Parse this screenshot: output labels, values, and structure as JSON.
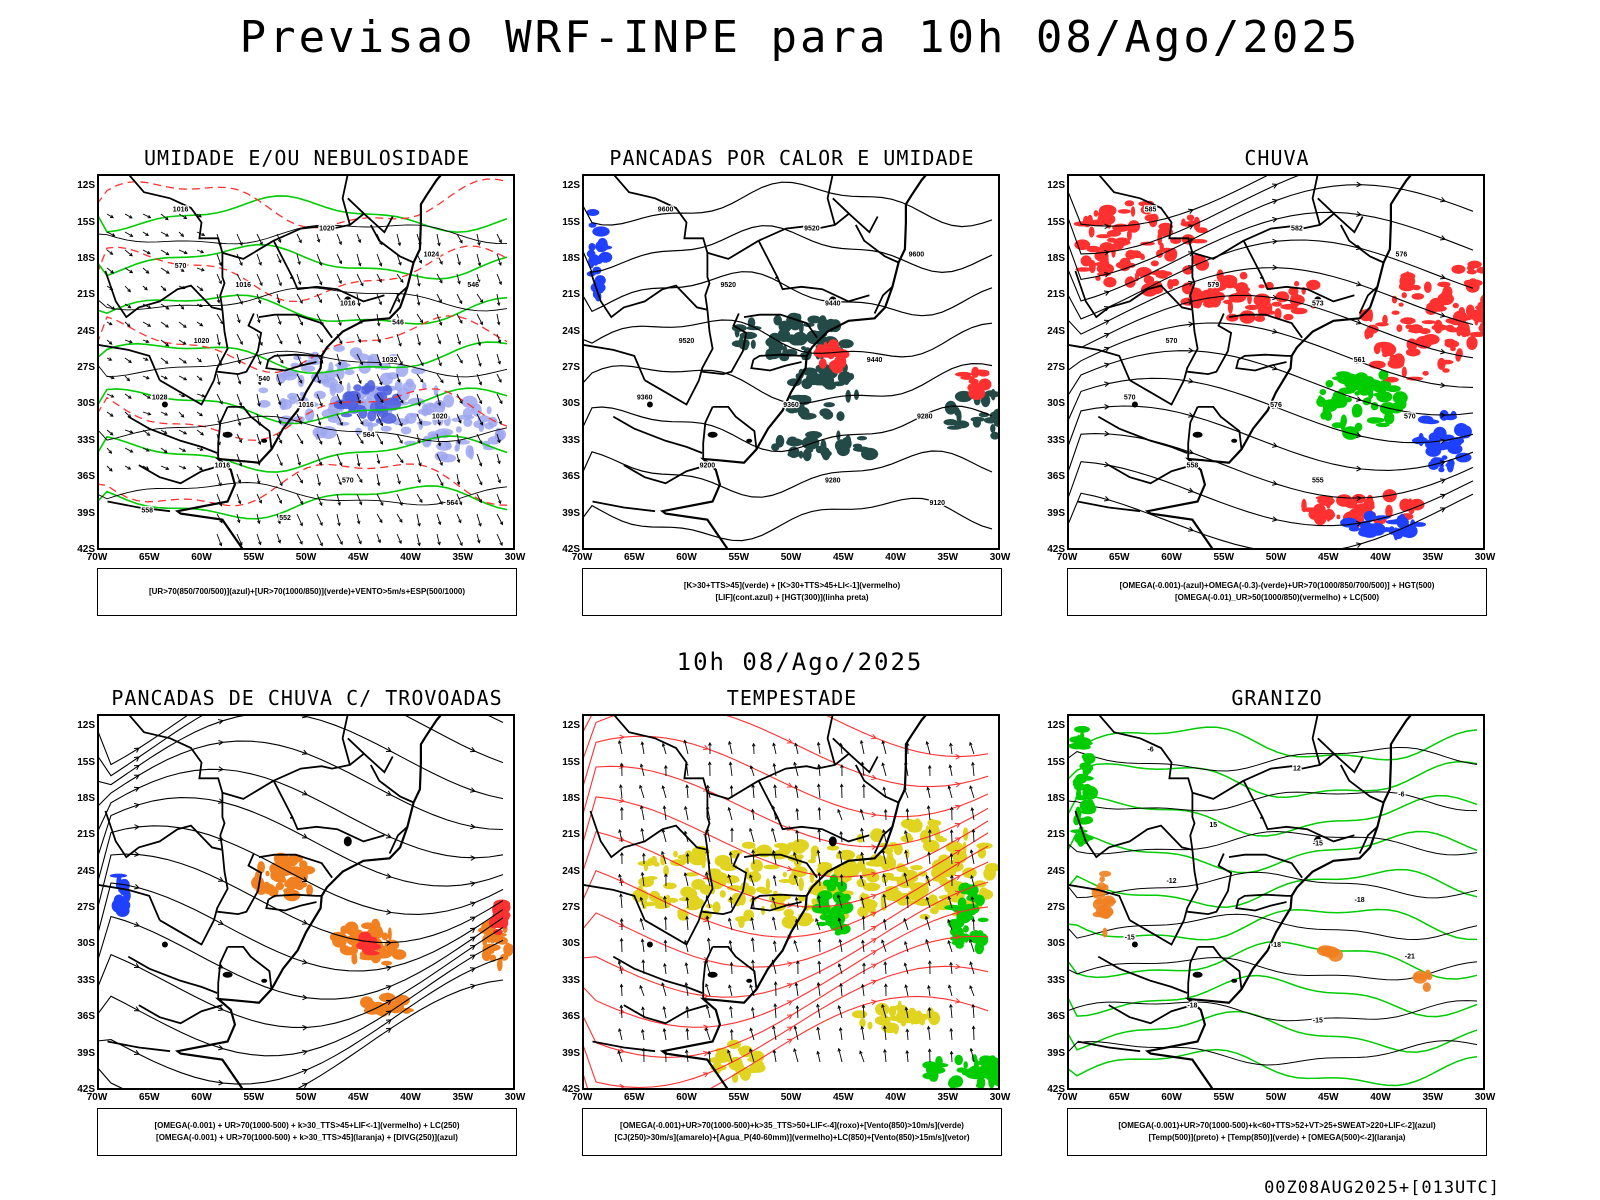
{
  "title": "Previsao WRF-INPE  para 10h 08/Ago/2025",
  "mid_title": "10h 08/Ago/2025",
  "footer": "00Z08AUG2025+[013UTC]",
  "axis": {
    "lat_ticks": [
      "12S",
      "15S",
      "18S",
      "21S",
      "24S",
      "27S",
      "30S",
      "33S",
      "36S",
      "39S",
      "42S"
    ],
    "lon_ticks": [
      "70W",
      "65W",
      "60W",
      "55W",
      "50W",
      "45W",
      "40W",
      "35W",
      "30W"
    ]
  },
  "panels": [
    {
      "title": "UMIDADE E/OU NEBULOSIDADE",
      "legend": [
        "[UR>70(850/700/500)](azul)+[UR>70(1000/850)](verde)+VENTO>5m/s+ESP(500/1000)"
      ],
      "fields": [
        "blue-fill",
        "green-contour",
        "red-dashed",
        "black-contour",
        "wind-vectors"
      ],
      "contour_labels": [
        "1016",
        "1020",
        "1024",
        "1016",
        "1016",
        "1020",
        "1032",
        "1028",
        "1016",
        "1020",
        "1016",
        "570",
        "564",
        "558",
        "552",
        "546",
        "540",
        "546",
        "570",
        "564"
      ]
    },
    {
      "title": "PANCADAS POR CALOR E UMIDADE",
      "legend": [
        "[K>30+TTS>45](verde) + [K>30+TTS>45+LI<-1](vermelho)",
        "[LIF](cont.azul) + [HGT(300)](linha preta)"
      ],
      "fields": [
        "dark-teal-fill",
        "red-fill",
        "blue-contour",
        "black-contour"
      ],
      "contour_labels": [
        "9600",
        "9520",
        "9600",
        "9520",
        "9440",
        "9520",
        "9440",
        "9360",
        "9360",
        "9280",
        "9200",
        "9280",
        "9120"
      ]
    },
    {
      "title": "CHUVA",
      "legend": [
        "[OMEGA(-0.001)-(azul)+OMEGA(-0.3)-(verde)+UR>70(1000/850/700/500)] + HGT(500)",
        "[OMEGA(-0.01)_UR>50(1000/850)(vermelho) + LC(500)"
      ],
      "fields": [
        "red-fill",
        "green-fill",
        "blue-fill",
        "streamlines"
      ],
      "contour_labels": [
        "585",
        "582",
        "576",
        "579",
        "573",
        "570",
        "561",
        "570",
        "576",
        "570",
        "558",
        "555"
      ]
    },
    {
      "title": "PANCADAS DE CHUVA C/ TROVOADAS",
      "legend": [
        "[OMEGA(-0.001) + UR>70(1000-500) + k>30_TTS>45+LIF<-1](vermelho) + LC(250)",
        "[OMEGA(-0.001) + UR>70(1000-500) + k>30_TTS>45](laranja) + [DIVG(250)](azul)"
      ],
      "fields": [
        "orange-fill",
        "red-fill",
        "blue-fill",
        "streamlines"
      ],
      "contour_labels": []
    },
    {
      "title": "TEMPESTADE",
      "legend": [
        "[OMEGA(-0.001)+UR>70(1000-500)+k>35_TTS>50+LIF<-4](roxo)+[Vento(850)>10m/s](verde)",
        "[CJ(250)>30m/s](amarelo)+[Agua_P(40-60mm)](vermelho)+LC(850)+[Vento(850)>15m/s](vetor)"
      ],
      "fields": [
        "yellow-fill",
        "green-fill",
        "red-streamlines",
        "wind-vectors"
      ],
      "contour_labels": []
    },
    {
      "title": "GRANIZO",
      "legend": [
        "[OMEGA(-0.001)+UR>70(1000-500)+k<60+TTS>52+VT>25+SWEAT>220+LIF<-2](azul)",
        "[Temp(500)](preto) + [Temp(850)](verde) + [OMEGA(500)<-2](laranja)"
      ],
      "fields": [
        "green-contour",
        "black-contour",
        "orange-contour"
      ],
      "contour_labels": [
        "-6",
        "12",
        "-6",
        "15",
        "-15",
        "-12",
        "-18",
        "-15",
        "-18",
        "-21",
        "-18",
        "-15"
      ]
    }
  ],
  "colors": {
    "red": "#ff3030",
    "green": "#00cc00",
    "blue": "#2040ff",
    "lightblue": "#9ea6f0",
    "teal": "#234a46",
    "orange": "#f08020",
    "yellow": "#e0d420"
  }
}
